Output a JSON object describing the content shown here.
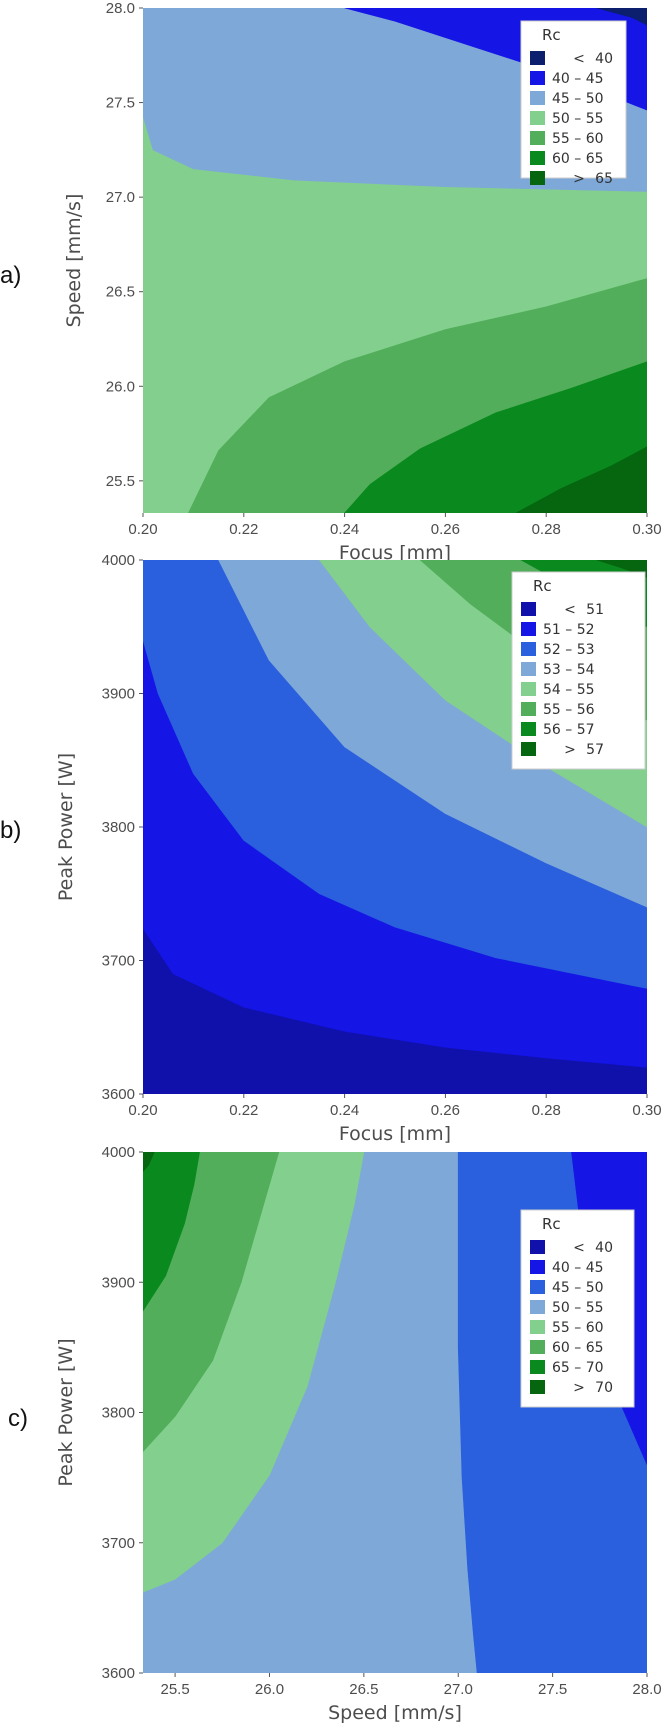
{
  "chart_data": [
    {
      "type": "contour",
      "panel_label": "a)",
      "xlabel": "Focus [mm]",
      "ylabel": "Speed [mm/s]",
      "xlim": [
        0.2,
        0.3
      ],
      "ylim": [
        25.33,
        28.0
      ],
      "x_ticks": [
        "0.20",
        "0.22",
        "0.24",
        "0.26",
        "0.28",
        "0.30"
      ],
      "y_ticks": [
        "25.5",
        "26.0",
        "26.5",
        "27.0",
        "27.5",
        "28.0"
      ],
      "y_tick_values": [
        25.5,
        26.0,
        26.5,
        27.0,
        27.5,
        28.0
      ],
      "legend": {
        "title": "Rc",
        "entries": [
          {
            "label": "<",
            "value": "40",
            "color": "#0b1f6e"
          },
          {
            "label": "40  –  45",
            "value": "",
            "color": "#1515e6"
          },
          {
            "label": "45  –  50",
            "value": "",
            "color": "#7ea8d8"
          },
          {
            "label": "50  –  55",
            "value": "",
            "color": "#82cf8e"
          },
          {
            "label": "55  –  60",
            "value": "",
            "color": "#52ae5a"
          },
          {
            "label": "60  –  65",
            "value": "",
            "color": "#0a8a1e"
          },
          {
            "label": ">",
            "value": "65",
            "color": "#05660f"
          }
        ]
      },
      "bands": [
        {
          "color": "#82cf8e",
          "polygon": [
            [
              0.2,
              25.33
            ],
            [
              0.3,
              25.33
            ],
            [
              0.3,
              28.0
            ],
            [
              0.2,
              28.0
            ]
          ]
        },
        {
          "color": "#7ea8d8",
          "polygon": [
            [
              0.2,
              27.43
            ],
            [
              0.202,
              27.25
            ],
            [
              0.21,
              27.15
            ],
            [
              0.23,
              27.09
            ],
            [
              0.26,
              27.055
            ],
            [
              0.3,
              27.03
            ],
            [
              0.3,
              28.0
            ],
            [
              0.2,
              28.0
            ]
          ]
        },
        {
          "color": "#1515e6",
          "polygon": [
            [
              0.24,
              28.0
            ],
            [
              0.25,
              27.93
            ],
            [
              0.265,
              27.8
            ],
            [
              0.28,
              27.67
            ],
            [
              0.3,
              27.46
            ],
            [
              0.3,
              28.0
            ]
          ]
        },
        {
          "color": "#0b1f6e",
          "polygon": [
            [
              0.29,
              28.0
            ],
            [
              0.297,
              27.95
            ],
            [
              0.3,
              27.91
            ],
            [
              0.3,
              28.0
            ]
          ]
        },
        {
          "color": "#52ae5a",
          "polygon": [
            [
              0.209,
              25.33
            ],
            [
              0.215,
              25.66
            ],
            [
              0.225,
              25.94
            ],
            [
              0.24,
              26.13
            ],
            [
              0.26,
              26.3
            ],
            [
              0.28,
              26.42
            ],
            [
              0.3,
              26.57
            ],
            [
              0.3,
              25.33
            ]
          ]
        },
        {
          "color": "#0a8a1e",
          "polygon": [
            [
              0.24,
              25.33
            ],
            [
              0.245,
              25.48
            ],
            [
              0.255,
              25.67
            ],
            [
              0.27,
              25.86
            ],
            [
              0.285,
              25.99
            ],
            [
              0.3,
              26.13
            ],
            [
              0.3,
              25.33
            ]
          ]
        },
        {
          "color": "#05660f",
          "polygon": [
            [
              0.274,
              25.33
            ],
            [
              0.283,
              25.46
            ],
            [
              0.293,
              25.58
            ],
            [
              0.3,
              25.68
            ],
            [
              0.3,
              25.33
            ]
          ]
        }
      ]
    },
    {
      "type": "contour",
      "panel_label": "b)",
      "xlabel": "Focus [mm]",
      "ylabel": "Peak Power [W]",
      "xlim": [
        0.2,
        0.3
      ],
      "ylim": [
        3600,
        4000
      ],
      "x_ticks": [
        "0.20",
        "0.22",
        "0.24",
        "0.26",
        "0.28",
        "0.30"
      ],
      "y_ticks": [
        "3600",
        "3700",
        "3800",
        "3900",
        "4000"
      ],
      "y_tick_values": [
        3600,
        3700,
        3800,
        3900,
        4000
      ],
      "legend": {
        "title": "Rc",
        "entries": [
          {
            "label": "<",
            "value": "51",
            "color": "#1010aa"
          },
          {
            "label": "51  –  52",
            "value": "",
            "color": "#1515e6"
          },
          {
            "label": "52  –  53",
            "value": "",
            "color": "#2a60dd"
          },
          {
            "label": "53  –  54",
            "value": "",
            "color": "#7ea8d8"
          },
          {
            "label": "54  –  55",
            "value": "",
            "color": "#82cf8e"
          },
          {
            "label": "55  –  56",
            "value": "",
            "color": "#52ae5a"
          },
          {
            "label": "56  –  57",
            "value": "",
            "color": "#0a8a1e"
          },
          {
            "label": ">",
            "value": "57",
            "color": "#05660f"
          }
        ]
      },
      "bands": [
        {
          "color": "#1010aa",
          "polygon": [
            [
              0.2,
              3600
            ],
            [
              0.3,
              3600
            ],
            [
              0.3,
              4000
            ],
            [
              0.2,
              4000
            ]
          ]
        },
        {
          "color": "#1515e6",
          "polygon": [
            [
              0.2,
              3724
            ],
            [
              0.206,
              3690
            ],
            [
              0.22,
              3665
            ],
            [
              0.24,
              3647
            ],
            [
              0.26,
              3635
            ],
            [
              0.28,
              3627
            ],
            [
              0.3,
              3620
            ],
            [
              0.3,
              4000
            ],
            [
              0.2,
              4000
            ]
          ]
        },
        {
          "color": "#2a60dd",
          "polygon": [
            [
              0.2,
              3940
            ],
            [
              0.203,
              3900
            ],
            [
              0.21,
              3840
            ],
            [
              0.22,
              3790
            ],
            [
              0.235,
              3750
            ],
            [
              0.25,
              3725
            ],
            [
              0.27,
              3702
            ],
            [
              0.3,
              3679
            ],
            [
              0.3,
              4000
            ],
            [
              0.2,
              4000
            ]
          ]
        },
        {
          "color": "#7ea8d8",
          "polygon": [
            [
              0.215,
              4000
            ],
            [
              0.225,
              3925
            ],
            [
              0.24,
              3860
            ],
            [
              0.26,
              3810
            ],
            [
              0.28,
              3773
            ],
            [
              0.3,
              3740
            ],
            [
              0.3,
              4000
            ]
          ]
        },
        {
          "color": "#82cf8e",
          "polygon": [
            [
              0.235,
              4000
            ],
            [
              0.245,
              3950
            ],
            [
              0.26,
              3895
            ],
            [
              0.28,
              3845
            ],
            [
              0.3,
              3800
            ],
            [
              0.3,
              4000
            ]
          ]
        },
        {
          "color": "#52ae5a",
          "polygon": [
            [
              0.255,
              4000
            ],
            [
              0.265,
              3967
            ],
            [
              0.28,
              3925
            ],
            [
              0.3,
              3880
            ],
            [
              0.3,
              4000
            ]
          ]
        },
        {
          "color": "#0a8a1e",
          "polygon": [
            [
              0.275,
              4000
            ],
            [
              0.285,
              3979
            ],
            [
              0.3,
              3950
            ],
            [
              0.3,
              4000
            ]
          ]
        },
        {
          "color": "#05660f",
          "polygon": [
            [
              0.29,
              4000
            ],
            [
              0.295,
              3994
            ],
            [
              0.3,
              3987
            ],
            [
              0.3,
              4000
            ]
          ]
        }
      ]
    },
    {
      "type": "contour",
      "panel_label": "c)",
      "xlabel": "Speed [mm/s]",
      "ylabel": "Peak Power [W]",
      "xlim": [
        25.33,
        28.0
      ],
      "ylim": [
        3600,
        4000
      ],
      "x_ticks": [
        "25.5",
        "26.0",
        "26.5",
        "27.0",
        "27.5",
        "28.0"
      ],
      "x_tick_values": [
        25.5,
        26.0,
        26.5,
        27.0,
        27.5,
        28.0
      ],
      "y_ticks": [
        "3600",
        "3700",
        "3800",
        "3900",
        "4000"
      ],
      "y_tick_values": [
        3600,
        3700,
        3800,
        3900,
        4000
      ],
      "legend": {
        "title": "Rc",
        "entries": [
          {
            "label": "<",
            "value": "40",
            "color": "#1010aa"
          },
          {
            "label": "40  –  45",
            "value": "",
            "color": "#1515e6"
          },
          {
            "label": "45  –  50",
            "value": "",
            "color": "#2a60dd"
          },
          {
            "label": "50  –  55",
            "value": "",
            "color": "#7ea8d8"
          },
          {
            "label": "55  –  60",
            "value": "",
            "color": "#82cf8e"
          },
          {
            "label": "60  –  65",
            "value": "",
            "color": "#52ae5a"
          },
          {
            "label": "65  –  70",
            "value": "",
            "color": "#0a8a1e"
          },
          {
            "label": ">",
            "value": "70",
            "color": "#05660f"
          }
        ]
      },
      "bands": [
        {
          "color": "#7ea8d8",
          "polygon": [
            [
              25.33,
              3600
            ],
            [
              28.0,
              3600
            ],
            [
              28.0,
              4000
            ],
            [
              25.33,
              4000
            ]
          ]
        },
        {
          "color": "#82cf8e",
          "polygon": [
            [
              25.33,
              3662
            ],
            [
              25.5,
              3672
            ],
            [
              25.75,
              3700
            ],
            [
              26.0,
              3752
            ],
            [
              26.2,
              3820
            ],
            [
              26.35,
              3900
            ],
            [
              26.45,
              3960
            ],
            [
              26.5,
              4000
            ],
            [
              25.33,
              4000
            ]
          ]
        },
        {
          "color": "#52ae5a",
          "polygon": [
            [
              25.33,
              3770
            ],
            [
              25.5,
              3797
            ],
            [
              25.7,
              3840
            ],
            [
              25.85,
              3900
            ],
            [
              25.97,
              3960
            ],
            [
              26.05,
              4000
            ],
            [
              25.33,
              4000
            ]
          ]
        },
        {
          "color": "#0a8a1e",
          "polygon": [
            [
              25.33,
              3878
            ],
            [
              25.45,
              3905
            ],
            [
              25.55,
              3945
            ],
            [
              25.6,
              3975
            ],
            [
              25.63,
              4000
            ],
            [
              25.33,
              4000
            ]
          ]
        },
        {
          "color": "#05660f",
          "polygon": [
            [
              25.33,
              3985
            ],
            [
              25.36,
              3990
            ],
            [
              25.39,
              4000
            ],
            [
              25.33,
              4000
            ]
          ]
        },
        {
          "color": "#2a60dd",
          "polygon": [
            [
              27.0,
              4000
            ],
            [
              27.0,
              3850
            ],
            [
              27.02,
              3750
            ],
            [
              27.05,
              3680
            ],
            [
              27.08,
              3630
            ],
            [
              27.1,
              3600
            ],
            [
              28.0,
              3600
            ],
            [
              28.0,
              4000
            ]
          ]
        },
        {
          "color": "#1515e6",
          "polygon": [
            [
              27.6,
              4000
            ],
            [
              27.65,
              3940
            ],
            [
              27.75,
              3860
            ],
            [
              27.85,
              3810
            ],
            [
              28.0,
              3760
            ],
            [
              28.0,
              4000
            ]
          ]
        }
      ]
    }
  ]
}
